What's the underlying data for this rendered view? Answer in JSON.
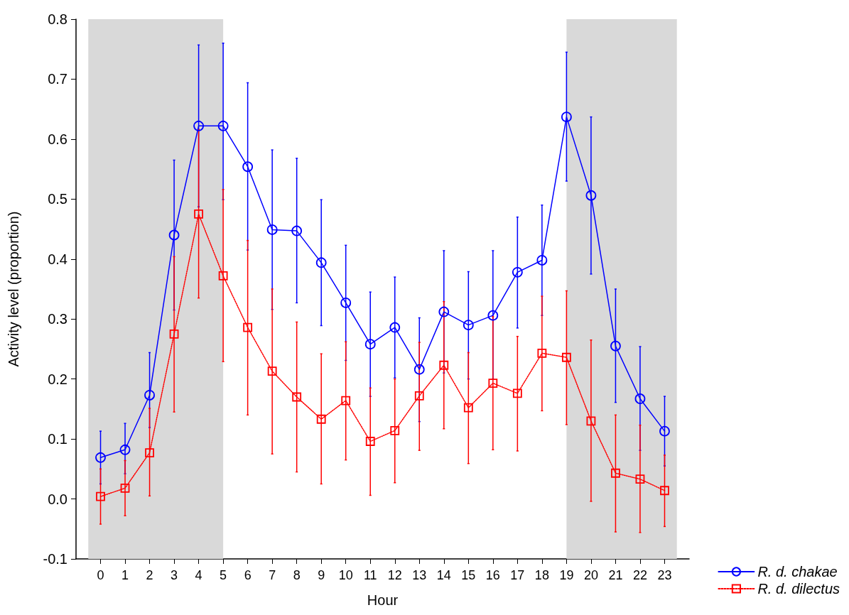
{
  "chart_data": {
    "type": "line",
    "xlabel": "Hour",
    "ylabel": "Activity level (proportion)",
    "x": [
      0,
      1,
      2,
      3,
      4,
      5,
      6,
      7,
      8,
      9,
      10,
      11,
      12,
      13,
      14,
      15,
      16,
      17,
      18,
      19,
      20,
      21,
      22,
      23
    ],
    "xlim": [
      -1,
      24
    ],
    "xticks": [
      0,
      1,
      2,
      3,
      4,
      5,
      6,
      7,
      8,
      9,
      10,
      11,
      12,
      13,
      14,
      15,
      16,
      17,
      18,
      19,
      20,
      21,
      22,
      23
    ],
    "ylim": [
      -0.1,
      0.8
    ],
    "yticks": [
      -0.1,
      {
        "value": 0,
        "label": "0.0"
      },
      0.1,
      0.2,
      0.3,
      0.4,
      0.5,
      0.6,
      0.7,
      0.8
    ],
    "grid": false,
    "legend": "bottom right",
    "bands": [
      {
        "axis": "x",
        "from": -0.5,
        "to": 5,
        "color": "#d9d9d9"
      },
      {
        "axis": "x",
        "from": 19,
        "to": 23.5,
        "color": "#d9d9d9"
      }
    ],
    "series": [
      {
        "name": "R. d. chakae",
        "color": "#0000ff",
        "marker": "circle",
        "line_style": "solid",
        "values": [
          0.069,
          0.082,
          0.173,
          0.44,
          0.622,
          0.622,
          0.554,
          0.449,
          0.447,
          0.394,
          0.327,
          0.258,
          0.286,
          0.216,
          0.312,
          0.29,
          0.306,
          0.378,
          0.398,
          0.637,
          0.506,
          0.255,
          0.167,
          0.113
        ],
        "errors": [
          [
            0.025,
            0.113
          ],
          [
            0.042,
            0.126
          ],
          [
            0.119,
            0.244
          ],
          [
            0.315,
            0.565
          ],
          [
            0.487,
            0.757
          ],
          [
            0.499,
            0.76
          ],
          [
            0.415,
            0.694
          ],
          [
            0.316,
            0.582
          ],
          [
            0.327,
            0.568
          ],
          [
            0.289,
            0.499
          ],
          [
            0.231,
            0.423
          ],
          [
            0.171,
            0.345
          ],
          [
            0.202,
            0.37
          ],
          [
            0.129,
            0.302
          ],
          [
            0.21,
            0.414
          ],
          [
            0.2,
            0.379
          ],
          [
            0.2,
            0.414
          ],
          [
            0.285,
            0.47
          ],
          [
            0.306,
            0.49
          ],
          [
            0.53,
            0.745
          ],
          [
            0.375,
            0.637
          ],
          [
            0.161,
            0.35
          ],
          [
            0.081,
            0.254
          ],
          [
            0.055,
            0.171
          ]
        ]
      },
      {
        "name": "R. d. dilectus",
        "color": "#ff0000",
        "marker": "square",
        "line_style": "dotted",
        "values": [
          0.004,
          0.018,
          0.077,
          0.275,
          0.475,
          0.372,
          0.286,
          0.213,
          0.17,
          0.133,
          0.164,
          0.096,
          0.114,
          0.172,
          0.223,
          0.152,
          0.193,
          0.176,
          0.243,
          0.236,
          0.13,
          0.043,
          0.033,
          0.014
        ],
        "errors": [
          [
            -0.042,
            0.05
          ],
          [
            -0.028,
            0.064
          ],
          [
            0.005,
            0.151
          ],
          [
            0.145,
            0.404
          ],
          [
            0.335,
            0.616
          ],
          [
            0.229,
            0.516
          ],
          [
            0.14,
            0.431
          ],
          [
            0.075,
            0.35
          ],
          [
            0.045,
            0.295
          ],
          [
            0.025,
            0.242
          ],
          [
            0.065,
            0.262
          ],
          [
            0.006,
            0.185
          ],
          [
            0.027,
            0.2
          ],
          [
            0.081,
            0.261
          ],
          [
            0.117,
            0.329
          ],
          [
            0.059,
            0.244
          ],
          [
            0.082,
            0.304
          ],
          [
            0.08,
            0.271
          ],
          [
            0.147,
            0.338
          ],
          [
            0.124,
            0.347
          ],
          [
            -0.004,
            0.265
          ],
          [
            -0.055,
            0.14
          ],
          [
            -0.056,
            0.123
          ],
          [
            -0.046,
            0.073
          ]
        ]
      }
    ]
  }
}
